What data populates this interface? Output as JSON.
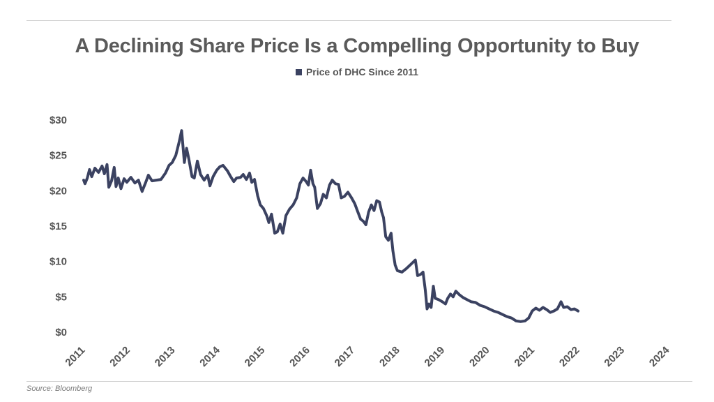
{
  "title": "A Declining Share Price Is a Compelling Opportunity to Buy",
  "source": "Source: Bloomberg",
  "colors": {
    "series": "#3b4261",
    "text": "#555555",
    "rule": "#d0d0d0"
  },
  "chart_data": {
    "type": "line",
    "title": "A Declining Share Price Is a Compelling Opportunity to Buy",
    "legend_position": "top-center",
    "grid": false,
    "ylim": [
      0,
      30
    ],
    "xlim": [
      2011,
      2024.4
    ],
    "yticks": [
      {
        "value": 0,
        "label": "$0"
      },
      {
        "value": 5,
        "label": "$5"
      },
      {
        "value": 10,
        "label": "$10"
      },
      {
        "value": 15,
        "label": "$15"
      },
      {
        "value": 20,
        "label": "$20"
      },
      {
        "value": 25,
        "label": "$25"
      },
      {
        "value": 30,
        "label": "$30"
      }
    ],
    "xticks": [
      {
        "value": 2011,
        "label": "2011"
      },
      {
        "value": 2012,
        "label": "2012"
      },
      {
        "value": 2013,
        "label": "2013"
      },
      {
        "value": 2014,
        "label": "2014"
      },
      {
        "value": 2015,
        "label": "2015"
      },
      {
        "value": 2016,
        "label": "2016"
      },
      {
        "value": 2017,
        "label": "2017"
      },
      {
        "value": 2018,
        "label": "2018"
      },
      {
        "value": 2019,
        "label": "2019"
      },
      {
        "value": 2020,
        "label": "2020"
      },
      {
        "value": 2021,
        "label": "2021"
      },
      {
        "value": 2022,
        "label": "2022"
      },
      {
        "value": 2023,
        "label": "2023"
      },
      {
        "value": 2024,
        "label": "2024"
      }
    ],
    "series": [
      {
        "name": "Price of DHC Since 2011",
        "color": "#3b4261",
        "points": [
          [
            2011.0,
            21.5
          ],
          [
            2011.03,
            21.0
          ],
          [
            2011.08,
            21.8
          ],
          [
            2011.13,
            23.0
          ],
          [
            2011.18,
            22.0
          ],
          [
            2011.25,
            23.2
          ],
          [
            2011.33,
            22.6
          ],
          [
            2011.41,
            23.5
          ],
          [
            2011.46,
            22.4
          ],
          [
            2011.52,
            23.7
          ],
          [
            2011.56,
            20.5
          ],
          [
            2011.62,
            21.4
          ],
          [
            2011.68,
            23.3
          ],
          [
            2011.72,
            20.6
          ],
          [
            2011.77,
            21.8
          ],
          [
            2011.83,
            20.3
          ],
          [
            2011.9,
            21.7
          ],
          [
            2011.96,
            21.2
          ],
          [
            2012.05,
            21.9
          ],
          [
            2012.14,
            21.1
          ],
          [
            2012.22,
            21.5
          ],
          [
            2012.3,
            19.9
          ],
          [
            2012.38,
            21.2
          ],
          [
            2012.44,
            22.2
          ],
          [
            2012.52,
            21.4
          ],
          [
            2012.62,
            21.5
          ],
          [
            2012.72,
            21.6
          ],
          [
            2012.82,
            22.5
          ],
          [
            2012.9,
            23.6
          ],
          [
            2012.97,
            24.0
          ],
          [
            2013.05,
            25.0
          ],
          [
            2013.12,
            26.8
          ],
          [
            2013.18,
            28.5
          ],
          [
            2013.24,
            24.0
          ],
          [
            2013.29,
            26.0
          ],
          [
            2013.34,
            24.5
          ],
          [
            2013.41,
            22.0
          ],
          [
            2013.46,
            21.8
          ],
          [
            2013.53,
            24.2
          ],
          [
            2013.6,
            22.3
          ],
          [
            2013.68,
            21.5
          ],
          [
            2013.76,
            22.2
          ],
          [
            2013.81,
            20.7
          ],
          [
            2013.88,
            22.0
          ],
          [
            2013.96,
            22.9
          ],
          [
            2014.03,
            23.4
          ],
          [
            2014.1,
            23.6
          ],
          [
            2014.2,
            22.8
          ],
          [
            2014.27,
            22.0
          ],
          [
            2014.34,
            21.3
          ],
          [
            2014.4,
            21.8
          ],
          [
            2014.49,
            21.9
          ],
          [
            2014.55,
            22.3
          ],
          [
            2014.62,
            21.6
          ],
          [
            2014.69,
            22.5
          ],
          [
            2014.74,
            21.2
          ],
          [
            2014.8,
            21.6
          ],
          [
            2014.87,
            19.3
          ],
          [
            2014.93,
            18.0
          ],
          [
            2015.0,
            17.5
          ],
          [
            2015.07,
            16.5
          ],
          [
            2015.12,
            15.5
          ],
          [
            2015.18,
            16.7
          ],
          [
            2015.25,
            14.0
          ],
          [
            2015.31,
            14.2
          ],
          [
            2015.37,
            15.3
          ],
          [
            2015.43,
            14.0
          ],
          [
            2015.5,
            16.5
          ],
          [
            2015.58,
            17.4
          ],
          [
            2015.66,
            18.0
          ],
          [
            2015.74,
            19.0
          ],
          [
            2015.81,
            21.0
          ],
          [
            2015.88,
            21.8
          ],
          [
            2015.95,
            21.3
          ],
          [
            2016.0,
            20.8
          ],
          [
            2016.05,
            22.9
          ],
          [
            2016.1,
            21.0
          ],
          [
            2016.14,
            20.5
          ],
          [
            2016.2,
            17.5
          ],
          [
            2016.27,
            18.2
          ],
          [
            2016.33,
            19.5
          ],
          [
            2016.4,
            19.0
          ],
          [
            2016.47,
            20.8
          ],
          [
            2016.53,
            21.5
          ],
          [
            2016.6,
            21.0
          ],
          [
            2016.67,
            20.9
          ],
          [
            2016.73,
            19.0
          ],
          [
            2016.8,
            19.2
          ],
          [
            2016.88,
            19.8
          ],
          [
            2016.96,
            19.0
          ],
          [
            2017.03,
            18.2
          ],
          [
            2017.1,
            17.0
          ],
          [
            2017.16,
            16.0
          ],
          [
            2017.22,
            15.7
          ],
          [
            2017.28,
            15.2
          ],
          [
            2017.34,
            17.0
          ],
          [
            2017.4,
            18.0
          ],
          [
            2017.46,
            17.2
          ],
          [
            2017.52,
            18.6
          ],
          [
            2017.58,
            18.4
          ],
          [
            2017.63,
            17.0
          ],
          [
            2017.67,
            16.2
          ],
          [
            2017.72,
            13.5
          ],
          [
            2017.78,
            13.0
          ],
          [
            2017.84,
            14.0
          ],
          [
            2017.88,
            11.5
          ],
          [
            2017.93,
            9.5
          ],
          [
            2017.98,
            8.7
          ],
          [
            2018.08,
            8.5
          ],
          [
            2018.18,
            9.0
          ],
          [
            2018.28,
            9.6
          ],
          [
            2018.38,
            10.2
          ],
          [
            2018.43,
            8.0
          ],
          [
            2018.5,
            8.2
          ],
          [
            2018.55,
            8.5
          ],
          [
            2018.6,
            6.0
          ],
          [
            2018.64,
            3.3
          ],
          [
            2018.68,
            4.0
          ],
          [
            2018.73,
            3.5
          ],
          [
            2018.78,
            6.5
          ],
          [
            2018.82,
            4.8
          ],
          [
            2018.9,
            4.6
          ],
          [
            2018.98,
            4.3
          ],
          [
            2019.05,
            4.0
          ],
          [
            2019.1,
            4.8
          ],
          [
            2019.16,
            5.4
          ],
          [
            2019.22,
            5.0
          ],
          [
            2019.28,
            5.8
          ],
          [
            2019.36,
            5.3
          ],
          [
            2019.44,
            4.9
          ],
          [
            2019.53,
            4.6
          ],
          [
            2019.62,
            4.3
          ],
          [
            2019.72,
            4.2
          ],
          [
            2019.82,
            3.8
          ],
          [
            2019.92,
            3.6
          ],
          [
            2020.02,
            3.3
          ],
          [
            2020.12,
            3.0
          ],
          [
            2020.22,
            2.8
          ],
          [
            2020.32,
            2.5
          ],
          [
            2020.42,
            2.2
          ],
          [
            2020.52,
            2.0
          ],
          [
            2020.62,
            1.6
          ],
          [
            2020.72,
            1.5
          ],
          [
            2020.82,
            1.6
          ],
          [
            2020.9,
            2.0
          ],
          [
            2020.98,
            3.0
          ],
          [
            2021.06,
            3.4
          ],
          [
            2021.14,
            3.1
          ],
          [
            2021.22,
            3.5
          ],
          [
            2021.3,
            3.2
          ],
          [
            2021.38,
            2.8
          ],
          [
            2021.46,
            3.0
          ],
          [
            2021.54,
            3.3
          ],
          [
            2021.62,
            4.3
          ],
          [
            2021.68,
            3.5
          ],
          [
            2021.76,
            3.6
          ],
          [
            2021.84,
            3.2
          ],
          [
            2021.92,
            3.3
          ],
          [
            2022.0,
            3.0
          ]
        ]
      }
    ]
  }
}
